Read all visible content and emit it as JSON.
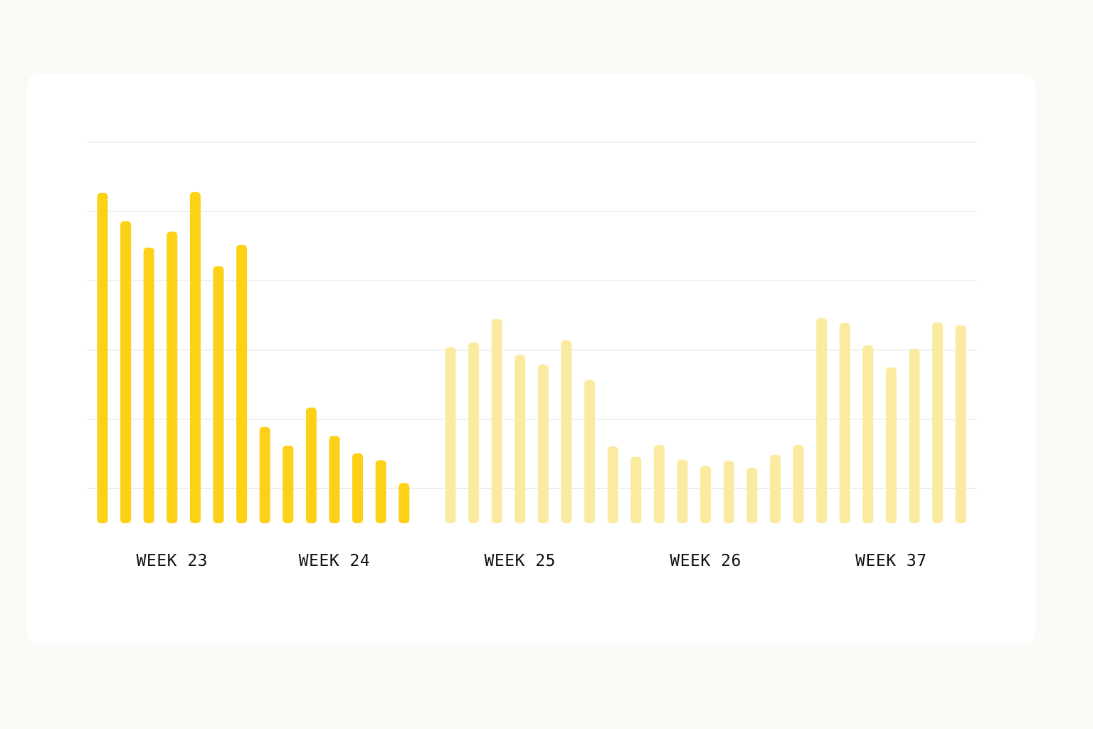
{
  "chart_data": {
    "type": "bar",
    "title": "",
    "xlabel": "",
    "ylabel": "",
    "ylim": [
      0,
      5.5
    ],
    "grid": true,
    "y_ticks": [
      0.5,
      1.5,
      2.5,
      3.5,
      4.5,
      5.5
    ],
    "colors": {
      "highlight": "#fcd116",
      "muted": "#fbeba0",
      "grid": "#e9e9e9"
    },
    "groups": [
      {
        "label": "WEEK 23",
        "highlight": true,
        "values": [
          4.77,
          4.36,
          3.98,
          4.21,
          4.78,
          3.71,
          4.02
        ]
      },
      {
        "label": "WEEK 24",
        "highlight": true,
        "values": [
          1.39,
          1.12,
          1.67,
          1.26,
          1.01,
          0.91,
          0.58
        ]
      },
      {
        "label": "WEEK 25",
        "highlight": false,
        "values": [
          2.54,
          2.61,
          2.95,
          2.43,
          2.29,
          2.64,
          2.07
        ]
      },
      {
        "label": "WEEK 26",
        "highlight": false,
        "values": [
          1.11,
          0.96,
          1.13,
          0.92,
          0.83,
          0.9,
          0.8,
          0.99,
          1.13
        ]
      },
      {
        "label": "WEEK 37",
        "highlight": false,
        "values": [
          2.96,
          2.89,
          2.57,
          2.25,
          2.52,
          2.9,
          2.86
        ]
      }
    ]
  }
}
